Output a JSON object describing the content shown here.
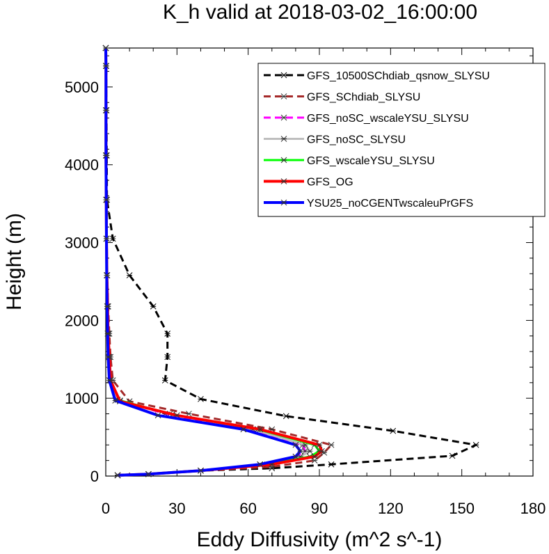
{
  "chart_data": {
    "type": "line",
    "title": "K_h valid at 2018-03-02_16:00:00",
    "xlabel": "Eddy Diffusivity (m^2 s^-1)",
    "ylabel": "Height (m)",
    "xlim": [
      0,
      180
    ],
    "ylim": [
      0,
      5500
    ],
    "xticks": [
      "0",
      "30",
      "60",
      "90",
      "120",
      "150",
      "180"
    ],
    "yticks": [
      "0",
      "1000",
      "2000",
      "3000",
      "4000",
      "5000"
    ],
    "legend_position": "top-right",
    "series": [
      {
        "name": "GFS_10500SChdiab_qsnow_SLYSU",
        "color": "#000000",
        "dash": "10,6",
        "width": 3,
        "points": [
          [
            5,
            10
          ],
          [
            18,
            25
          ],
          [
            40,
            70
          ],
          [
            70,
            100
          ],
          [
            95,
            150
          ],
          [
            146,
            260
          ],
          [
            156,
            400
          ],
          [
            121,
            580
          ],
          [
            76,
            770
          ],
          [
            40,
            990
          ],
          [
            25,
            1230
          ],
          [
            26,
            1530
          ],
          [
            26,
            1830
          ],
          [
            20,
            2180
          ],
          [
            10,
            2580
          ],
          [
            3,
            3050
          ],
          [
            0.5,
            3550
          ],
          [
            0.4,
            4120
          ],
          [
            0.3,
            4700
          ],
          [
            0.2,
            5270
          ],
          [
            0,
            5500
          ]
        ]
      },
      {
        "name": "GFS_SChdiab_SLYSU",
        "color": "#a52a2a",
        "dash": "10,6",
        "width": 3,
        "points": [
          [
            5,
            10
          ],
          [
            18,
            25
          ],
          [
            40,
            70
          ],
          [
            70,
            120
          ],
          [
            88,
            200
          ],
          [
            92,
            300
          ],
          [
            95,
            400
          ],
          [
            70,
            600
          ],
          [
            35,
            800
          ],
          [
            10,
            960
          ],
          [
            3,
            1230
          ],
          [
            2,
            1530
          ],
          [
            1.5,
            1830
          ],
          [
            1,
            2180
          ],
          [
            0.6,
            2580
          ],
          [
            0.4,
            3050
          ],
          [
            0.3,
            3550
          ],
          [
            0.2,
            4120
          ],
          [
            0.2,
            4700
          ],
          [
            0.1,
            5270
          ],
          [
            0,
            5500
          ]
        ]
      },
      {
        "name": "GFS_noSC_wscaleYSU_SLYSU",
        "color": "#ff00ff",
        "dash": "10,6",
        "width": 3,
        "points": [
          [
            5,
            10
          ],
          [
            18,
            25
          ],
          [
            40,
            70
          ],
          [
            65,
            150
          ],
          [
            80,
            250
          ],
          [
            84,
            320
          ],
          [
            83,
            400
          ],
          [
            60,
            600
          ],
          [
            25,
            800
          ],
          [
            5,
            980
          ],
          [
            2,
            1230
          ],
          [
            1.5,
            1530
          ],
          [
            1,
            1830
          ],
          [
            0.8,
            2180
          ],
          [
            0.5,
            2580
          ],
          [
            0.3,
            3050
          ],
          [
            0.2,
            3550
          ],
          [
            0.1,
            4120
          ],
          [
            0.1,
            4700
          ],
          [
            0.1,
            5270
          ],
          [
            0,
            5500
          ]
        ]
      },
      {
        "name": "GFS_noSC_SLYSU",
        "color": "#bebebe",
        "dash": "",
        "width": 3,
        "points": [
          [
            5,
            10
          ],
          [
            18,
            25
          ],
          [
            40,
            70
          ],
          [
            65,
            150
          ],
          [
            82,
            250
          ],
          [
            86,
            320
          ],
          [
            84,
            400
          ],
          [
            62,
            600
          ],
          [
            27,
            800
          ],
          [
            5,
            980
          ],
          [
            2,
            1230
          ],
          [
            1.5,
            1530
          ],
          [
            1,
            1830
          ],
          [
            0.8,
            2180
          ],
          [
            0.5,
            2580
          ],
          [
            0.3,
            3050
          ],
          [
            0.2,
            3550
          ],
          [
            0.1,
            4120
          ],
          [
            0.1,
            4700
          ],
          [
            0.1,
            5270
          ],
          [
            0,
            5500
          ]
        ]
      },
      {
        "name": "GFS_wscaleYSU_SLYSU",
        "color": "#00ff00",
        "dash": "",
        "width": 3,
        "points": [
          [
            5,
            10
          ],
          [
            18,
            25
          ],
          [
            40,
            70
          ],
          [
            68,
            150
          ],
          [
            86,
            250
          ],
          [
            90,
            320
          ],
          [
            88,
            400
          ],
          [
            64,
            600
          ],
          [
            28,
            790
          ],
          [
            6,
            970
          ],
          [
            2,
            1230
          ],
          [
            1.5,
            1530
          ],
          [
            1,
            1830
          ],
          [
            0.8,
            2180
          ],
          [
            0.5,
            2580
          ],
          [
            0.3,
            3050
          ],
          [
            0.2,
            3550
          ],
          [
            0.1,
            4120
          ],
          [
            0.1,
            4700
          ],
          [
            0.1,
            5270
          ],
          [
            0,
            5500
          ]
        ]
      },
      {
        "name": "GFS_OG",
        "color": "#ff0000",
        "dash": "",
        "width": 4,
        "points": [
          [
            5,
            10
          ],
          [
            18,
            25
          ],
          [
            40,
            70
          ],
          [
            70,
            150
          ],
          [
            88,
            250
          ],
          [
            91,
            320
          ],
          [
            90,
            400
          ],
          [
            65,
            600
          ],
          [
            30,
            780
          ],
          [
            6,
            960
          ],
          [
            2,
            1230
          ],
          [
            1.5,
            1530
          ],
          [
            1,
            1830
          ],
          [
            0.8,
            2180
          ],
          [
            0.5,
            2580
          ],
          [
            0.3,
            3050
          ],
          [
            0.2,
            3550
          ],
          [
            0.1,
            4120
          ],
          [
            0.1,
            4700
          ],
          [
            0.1,
            5270
          ],
          [
            0,
            5500
          ]
        ]
      },
      {
        "name": "YSU25_noCGENTwscaleuPrGFS",
        "color": "#0000ff",
        "dash": "",
        "width": 4,
        "points": [
          [
            5,
            10
          ],
          [
            18,
            25
          ],
          [
            40,
            70
          ],
          [
            65,
            150
          ],
          [
            80,
            250
          ],
          [
            82,
            320
          ],
          [
            80,
            400
          ],
          [
            58,
            600
          ],
          [
            22,
            780
          ],
          [
            4,
            970
          ],
          [
            1.5,
            1230
          ],
          [
            1,
            1530
          ],
          [
            0.8,
            1830
          ],
          [
            0.6,
            2180
          ],
          [
            0.4,
            2580
          ],
          [
            0.3,
            3050
          ],
          [
            0.2,
            3550
          ],
          [
            0.1,
            4120
          ],
          [
            0.1,
            4700
          ],
          [
            0.1,
            5270
          ],
          [
            0,
            5500
          ]
        ]
      }
    ]
  }
}
